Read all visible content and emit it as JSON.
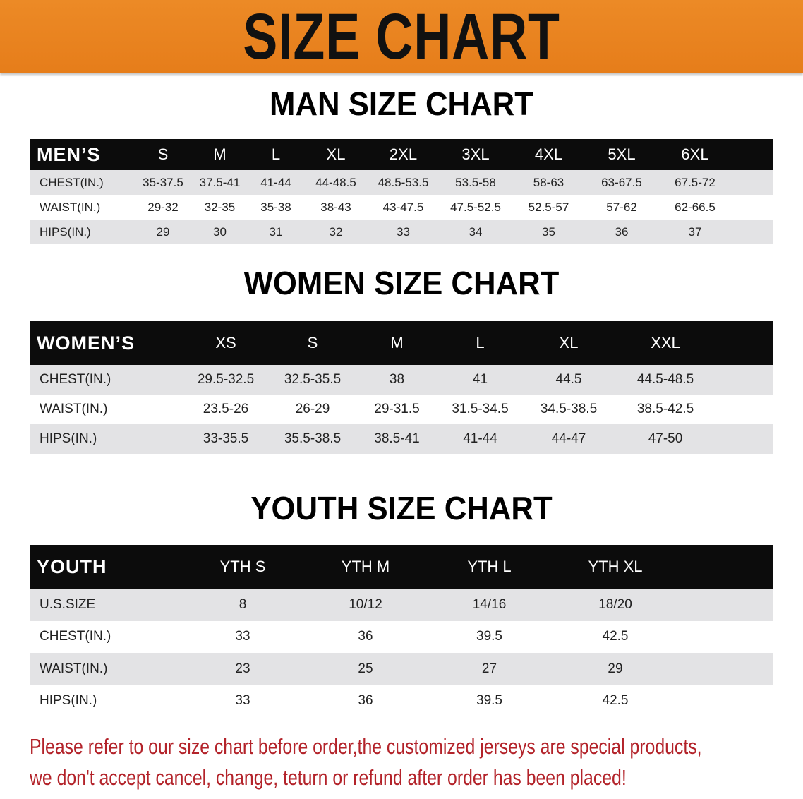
{
  "banner": {
    "title": "SIZE CHART",
    "color": "#e8811e"
  },
  "men": {
    "title": "MAN SIZE CHART",
    "header": [
      "MEN’S",
      "S",
      "M",
      "L",
      "XL",
      "2XL",
      "3XL",
      "4XL",
      "5XL",
      "6XL",
      ""
    ],
    "rows": [
      [
        "CHEST(IN.)",
        "35-37.5",
        "37.5-41",
        "41-44",
        "44-48.5",
        "48.5-53.5",
        "53.5-58",
        "58-63",
        "63-67.5",
        "67.5-72",
        ""
      ],
      [
        "WAIST(IN.)",
        "29-32",
        "32-35",
        "35-38",
        "38-43",
        "43-47.5",
        "47.5-52.5",
        "52.5-57",
        "57-62",
        "62-66.5",
        ""
      ],
      [
        "HIPS(IN.)",
        "29",
        "30",
        "31",
        "32",
        "33",
        "34",
        "35",
        "36",
        "37",
        ""
      ]
    ]
  },
  "women": {
    "title": "WOMEN SIZE CHART",
    "header": [
      "WOMEN’S",
      "XS",
      "S",
      "M",
      "L",
      "XL",
      "XXL",
      ""
    ],
    "rows": [
      [
        "CHEST(IN.)",
        "29.5-32.5",
        "32.5-35.5",
        "38",
        "41",
        "44.5",
        "44.5-48.5",
        ""
      ],
      [
        "WAIST(IN.)",
        "23.5-26",
        "26-29",
        "29-31.5",
        "31.5-34.5",
        "34.5-38.5",
        "38.5-42.5",
        ""
      ],
      [
        "HIPS(IN.)",
        "33-35.5",
        "35.5-38.5",
        "38.5-41",
        "41-44",
        "44-47",
        "47-50",
        ""
      ]
    ]
  },
  "youth": {
    "title": "YOUTH SIZE CHART",
    "header": [
      "YOUTH",
      "YTH S",
      "YTH M",
      "YTH L",
      "YTH XL",
      ""
    ],
    "rows": [
      [
        "U.S.SIZE",
        "8",
        "10/12",
        "14/16",
        "18/20",
        ""
      ],
      [
        "CHEST(IN.)",
        "33",
        "36",
        "39.5",
        "42.5",
        ""
      ],
      [
        "WAIST(IN.)",
        "23",
        "25",
        "27",
        "29",
        ""
      ],
      [
        "HIPS(IN.)",
        "33",
        "36",
        "39.5",
        "42.5",
        ""
      ]
    ]
  },
  "notice": {
    "line1": "Please refer to our size chart before order,the customized jerseys are special products,",
    "line2": "we don't accept cancel, change, teturn or refund after order has been placed!",
    "color": "#b3232a"
  }
}
